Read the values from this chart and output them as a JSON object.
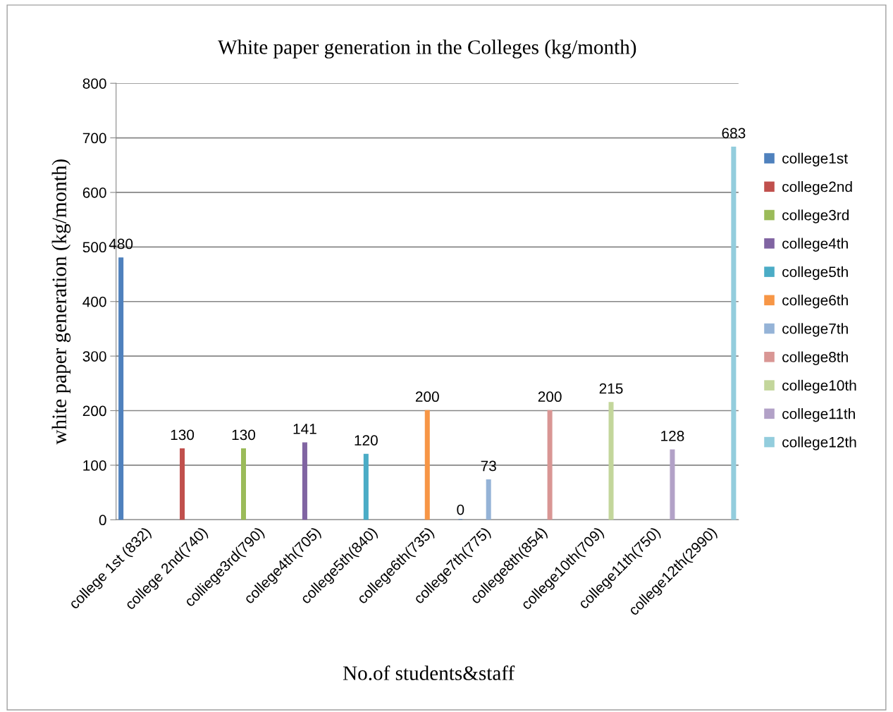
{
  "chart_data": {
    "type": "bar",
    "title": "White paper generation in the Colleges (kg/month)",
    "xlabel": "No.of students&staff",
    "ylabel": "white paper generation (kg/month)",
    "categories": [
      "college 1st (832)",
      "college 2nd(740)",
      "colliege3rd(790)",
      "college4th(705)",
      "college5th(840)",
      "college6th(735)",
      "college7th(775)",
      "college8th(854)",
      "college10th(709)",
      "college11th(750)",
      "college12th(2990)"
    ],
    "series": [
      {
        "name": "college1st",
        "color": "#4f81bd",
        "values": [
          480,
          null,
          null,
          null,
          null,
          null,
          0,
          null,
          null,
          null,
          null
        ]
      },
      {
        "name": "college2nd",
        "color": "#c0504d",
        "values": [
          null,
          130,
          null,
          null,
          null,
          null,
          null,
          null,
          null,
          null,
          null
        ]
      },
      {
        "name": "college3rd",
        "color": "#9bbb59",
        "values": [
          null,
          null,
          130,
          null,
          null,
          null,
          null,
          null,
          null,
          null,
          null
        ]
      },
      {
        "name": "college4th",
        "color": "#8064a2",
        "values": [
          null,
          null,
          null,
          141,
          null,
          null,
          null,
          null,
          null,
          null,
          null
        ]
      },
      {
        "name": "college5th",
        "color": "#4bacc6",
        "values": [
          null,
          null,
          null,
          null,
          120,
          null,
          null,
          null,
          null,
          null,
          null
        ]
      },
      {
        "name": "college6th",
        "color": "#f79646",
        "values": [
          null,
          null,
          null,
          null,
          null,
          200,
          null,
          null,
          null,
          null,
          null
        ]
      },
      {
        "name": "college7th",
        "color": "#95b3d7",
        "values": [
          null,
          null,
          null,
          null,
          null,
          null,
          73,
          null,
          null,
          null,
          null
        ]
      },
      {
        "name": "college8th",
        "color": "#d99694",
        "values": [
          null,
          null,
          null,
          null,
          null,
          null,
          null,
          200,
          null,
          null,
          null
        ]
      },
      {
        "name": "college10th",
        "color": "#c3d69b",
        "values": [
          null,
          null,
          null,
          null,
          null,
          null,
          null,
          null,
          215,
          null,
          null
        ]
      },
      {
        "name": "college11th",
        "color": "#b2a1c7",
        "values": [
          null,
          null,
          null,
          null,
          null,
          null,
          null,
          null,
          null,
          128,
          null
        ]
      },
      {
        "name": "college12th",
        "color": "#93cddd",
        "values": [
          null,
          null,
          null,
          null,
          null,
          null,
          null,
          null,
          null,
          null,
          683
        ]
      }
    ],
    "ylim": [
      0,
      800
    ],
    "yticks": [
      0,
      100,
      200,
      300,
      400,
      500,
      600,
      700,
      800
    ],
    "grid": "y",
    "legend": "right",
    "data_labels": true
  }
}
